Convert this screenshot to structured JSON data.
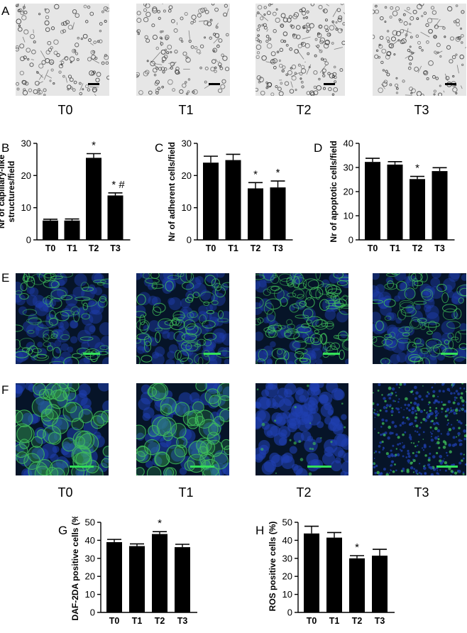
{
  "panels": {
    "A": "A",
    "B": "B",
    "C": "C",
    "D": "D",
    "E": "E",
    "F": "F",
    "G": "G",
    "H": "H"
  },
  "conditions_row1": [
    "T0",
    "T1",
    "T2",
    "T3"
  ],
  "conditions_row2": [
    "T0",
    "T1",
    "T2",
    "T3"
  ],
  "colors": {
    "bar": "#000000",
    "brightfield_bg": "#e6e6e6",
    "brightfield_cell": "#3a3a3a",
    "confocal_bg": "#061428",
    "nucleus_blue": "#1f3fb0",
    "stain_green": "#3fbf5a",
    "scale_bar_green": "#33e05a",
    "scale_bar_black": "#000000"
  },
  "chart_data": [
    {
      "id": "B",
      "type": "bar",
      "categories": [
        "T0",
        "T1",
        "T2",
        "T3"
      ],
      "values": [
        6,
        6,
        25.5,
        13.8
      ],
      "errors": [
        0.4,
        0.5,
        1.3,
        0.8
      ],
      "annotations": [
        "",
        "",
        "*",
        "* #"
      ],
      "ylabel": "Nr of capillary-like structures/field",
      "ylim": [
        0,
        30
      ],
      "yticks": [
        0,
        10,
        20,
        30
      ],
      "grid": false
    },
    {
      "id": "C",
      "type": "bar",
      "categories": [
        "T0",
        "T1",
        "T2",
        "T3"
      ],
      "values": [
        24,
        24.8,
        16,
        16.3
      ],
      "errors": [
        2,
        1.8,
        1.8,
        2
      ],
      "annotations": [
        "",
        "",
        "*",
        "*"
      ],
      "ylabel": "Nr of adherent cells/field",
      "ylim": [
        0,
        30
      ],
      "yticks": [
        0,
        10,
        20,
        30
      ],
      "grid": false
    },
    {
      "id": "D",
      "type": "bar",
      "categories": [
        "T0",
        "T1",
        "T2",
        "T3"
      ],
      "values": [
        32.3,
        31.2,
        25.2,
        28.5
      ],
      "errors": [
        1.5,
        1.2,
        1.1,
        1.4
      ],
      "annotations": [
        "",
        "",
        "*",
        ""
      ],
      "ylabel": "Nr of apoptotic cells/field",
      "ylim": [
        0,
        40
      ],
      "yticks": [
        0,
        10,
        20,
        30,
        40
      ],
      "grid": false
    },
    {
      "id": "G",
      "type": "bar",
      "categories": [
        "T0",
        "T1",
        "T2",
        "T3"
      ],
      "values": [
        39,
        36.8,
        43.5,
        36.2
      ],
      "errors": [
        1.5,
        1.2,
        1.3,
        1.6
      ],
      "annotations": [
        "",
        "",
        "*",
        ""
      ],
      "ylabel": "DAF-2DA positive cells (%)",
      "ylim": [
        0,
        50
      ],
      "yticks": [
        0,
        10,
        20,
        30,
        40,
        50
      ],
      "grid": false
    },
    {
      "id": "H",
      "type": "bar",
      "categories": [
        "T0",
        "T1",
        "T2",
        "T3"
      ],
      "values": [
        43.8,
        41.5,
        30,
        31.5
      ],
      "errors": [
        4,
        2.8,
        1.5,
        3.5
      ],
      "annotations": [
        "",
        "",
        "*",
        ""
      ],
      "ylabel": "ROS positive cells (%)",
      "ylim": [
        0,
        50
      ],
      "yticks": [
        0,
        10,
        20,
        30,
        40,
        50
      ],
      "grid": false
    }
  ]
}
